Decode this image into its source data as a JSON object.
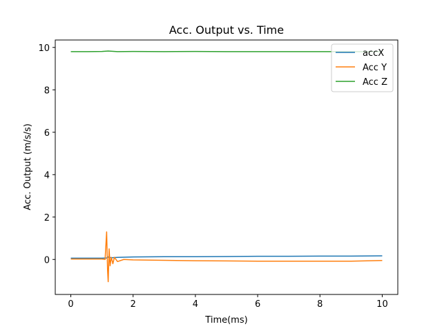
{
  "chart_data": {
    "type": "line",
    "title": "Acc. Output vs. Time",
    "xlabel": "Time(ms)",
    "ylabel": "Acc. Output (m/s/s)",
    "xlim": [
      -0.5,
      10.5
    ],
    "ylim": [
      -1.65,
      10.35
    ],
    "xticks": [
      0,
      2,
      4,
      6,
      8,
      10
    ],
    "yticks": [
      0,
      2,
      4,
      6,
      8,
      10
    ],
    "grid": false,
    "legend_position": "top-right",
    "series": [
      {
        "name": "accX",
        "color": "#1f77b4",
        "x": [
          0,
          0.5,
          1.0,
          1.15,
          1.2,
          1.3,
          1.5,
          2,
          3,
          4,
          5,
          6,
          7,
          8,
          9,
          10
        ],
        "y": [
          0.06,
          0.06,
          0.06,
          0.07,
          0.12,
          0.08,
          0.1,
          0.12,
          0.13,
          0.13,
          0.14,
          0.15,
          0.15,
          0.16,
          0.16,
          0.17
        ]
      },
      {
        "name": "Acc Y",
        "color": "#ff7f0e",
        "x": [
          0,
          0.5,
          1.0,
          1.1,
          1.15,
          1.18,
          1.2,
          1.23,
          1.26,
          1.3,
          1.35,
          1.4,
          1.5,
          1.7,
          2,
          3,
          4,
          5,
          6,
          7,
          8,
          9,
          10
        ],
        "y": [
          0.02,
          0.02,
          0.02,
          0.0,
          1.3,
          -0.5,
          -1.05,
          0.5,
          -0.3,
          0.1,
          -0.2,
          0.1,
          -0.1,
          0.0,
          -0.02,
          -0.04,
          -0.06,
          -0.07,
          -0.08,
          -0.08,
          -0.08,
          -0.08,
          -0.05
        ]
      },
      {
        "name": "Acc Z",
        "color": "#2ca02c",
        "x": [
          0,
          0.5,
          1,
          1.2,
          1.5,
          2,
          3,
          4,
          5,
          6,
          7,
          8,
          9,
          10
        ],
        "y": [
          9.8,
          9.8,
          9.81,
          9.83,
          9.8,
          9.81,
          9.8,
          9.81,
          9.8,
          9.8,
          9.8,
          9.8,
          9.8,
          9.8
        ]
      }
    ]
  }
}
